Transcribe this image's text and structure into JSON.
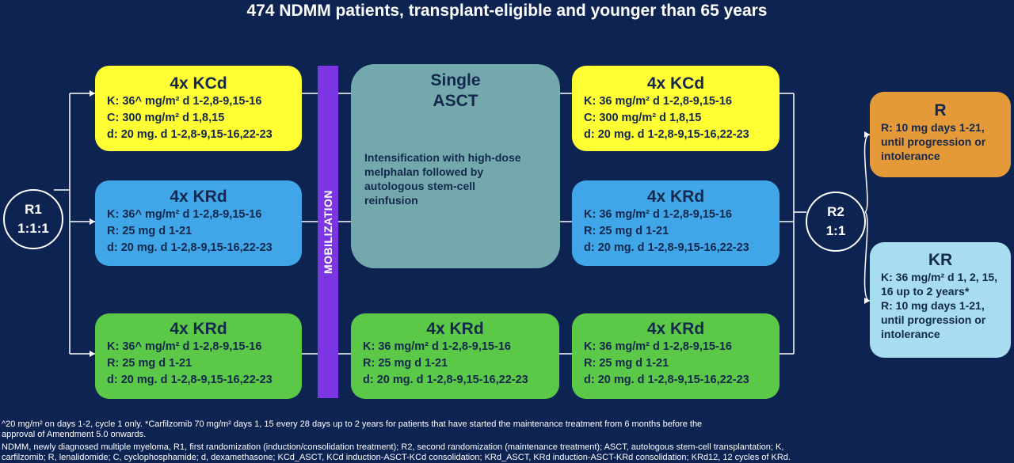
{
  "title": "474 NDMM patients, transplant-eligible and younger than 65 years",
  "r1": {
    "label": "R1",
    "ratio": "1:1:1"
  },
  "r2": {
    "label": "R2",
    "ratio": "1:1"
  },
  "mobilization": "MOBILIZATION",
  "asct": {
    "title_line1": "Single",
    "title_line2": "ASCT",
    "desc": "Intensification with high-dose melphalan followed by autologous stem-cell reinfusion"
  },
  "induction": [
    {
      "title": "4x KCd",
      "lines": [
        "K: 36^ mg/m² d 1-2,8-9,15-16",
        "C: 300 mg/m²  d 1,8,15",
        "d: 20 mg. d 1-2,8-9,15-16,22-23"
      ]
    },
    {
      "title": "4x KRd",
      "lines": [
        "K: 36^ mg/m² d 1-2,8-9,15-16",
        "R: 25 mg d 1-21",
        "d: 20 mg. d 1-2,8-9,15-16,22-23"
      ]
    },
    {
      "title": "4x KRd",
      "lines": [
        "K: 36^ mg/m² d 1-2,8-9,15-16",
        "R: 25 mg d 1-21",
        "d: 20 mg. d 1-2,8-9,15-16,22-23"
      ]
    }
  ],
  "middle_krd": {
    "title": "4x KRd",
    "lines": [
      "K: 36 mg/m² d 1-2,8-9,15-16",
      "R: 25 mg d 1-21",
      "d: 20 mg. d 1-2,8-9,15-16,22-23"
    ]
  },
  "consolidation": [
    {
      "title": "4x KCd",
      "lines": [
        "K: 36 mg/m² d 1-2,8-9,15-16",
        "C: 300 mg/m²  d 1,8,15",
        "d: 20 mg. d 1-2,8-9,15-16,22-23"
      ]
    },
    {
      "title": "4x KRd",
      "lines": [
        "K: 36 mg/m² d 1-2,8-9,15-16",
        "R: 25 mg d 1-21",
        "d: 20 mg. d 1-2,8-9,15-16,22-23"
      ]
    },
    {
      "title": "4x KRd",
      "lines": [
        "K: 36 mg/m² d 1-2,8-9,15-16",
        "R: 25 mg d 1-21",
        "d: 20 mg. d 1-2,8-9,15-16,22-23"
      ]
    }
  ],
  "maintenance": {
    "r": {
      "title": "R",
      "lines": [
        "R: 10 mg days 1-21, until progression or intolerance"
      ]
    },
    "kr": {
      "title": "KR",
      "lines": [
        "K: 36 mg/m² d 1, 2, 15, 16 up to 2 years*",
        "R: 10 mg days 1-21, until progression or intolerance"
      ]
    }
  },
  "footnotes": [
    "^20 mg/m² on days 1-2, cycle 1 only. *Carfilzomib 70 mg/m² days 1, 15 every 28 days up to 2 years for patients that have started the maintenance treatment from 6 months before the",
    "approval of Amendment 5.0 onwards.",
    "NDMM, newly diagnosed multiple myeloma, R1, first randomization (induction/consolidation treatment); R2, second randomization (maintenance treatment); ASCT, autologous stem-cell transplantation; K,",
    "carfilzomib; R, lenalidomide; C, cyclophosphamide; d, dexamethasone; KCd_ASCT, KCd induction-ASCT-KCd consolidation; KRd_ASCT, KRd induction-ASCT-KRd consolidation; KRd12, 12 cycles of KRd."
  ],
  "colors": {
    "background": "#0d2352",
    "yellow": "#ffff33",
    "blue": "#41a6e8",
    "green": "#5cc847",
    "purple": "#7b35e3",
    "teal": "#73a9ad",
    "orange": "#e59a3a",
    "light_blue": "#a7ddef"
  }
}
